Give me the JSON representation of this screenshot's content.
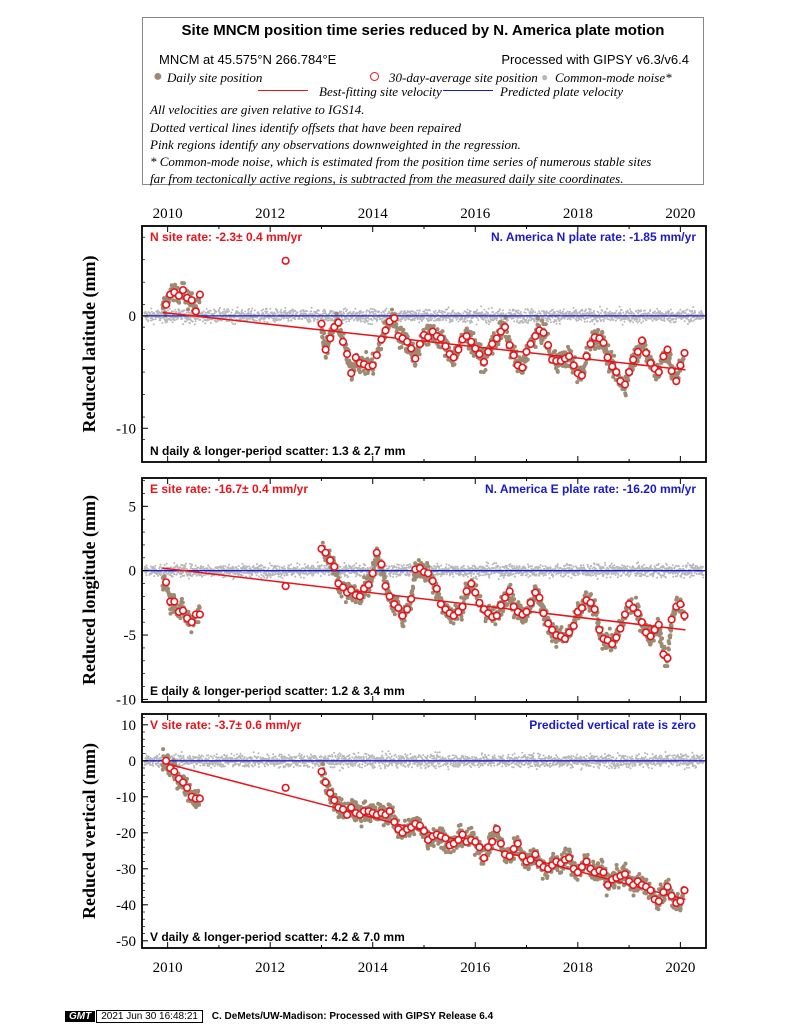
{
  "legend": {
    "title": "Site MNCM position time series reduced by N. America plate motion",
    "site_coords": "MNCM at 45.575°N 266.784°E",
    "processed": "Processed with GIPSY v6.3/v6.4",
    "daily_label": "Daily site position",
    "avg_label": "30-day-average site position",
    "cm_label": "Common-mode noise*",
    "fit_label": "Best-fitting site velocity",
    "pred_label": "Predicted plate velocity",
    "notes": [
      "All velocities are given relative to IGS14.",
      "Dotted vertical lines identify offsets that have been repaired",
      "Pink regions identify any observations downweighted in the regression.",
      "* Common-mode noise, which is estimated from the position time series of numerous stable sites",
      "far from tectonically active regions, is subtracted from the measured daily site coordinates."
    ]
  },
  "colors": {
    "daily": "#9c8a72",
    "avg_edge": "#e8141c",
    "common_mode": "#b8b8b8",
    "fit": "#e8141c",
    "plate": "#1a1acc",
    "site_rate_text": "#e8141c",
    "plate_rate_text": "#1a1acc"
  },
  "chart_data": [
    {
      "type": "scatter",
      "component": "N",
      "ylabel": "Reduced latitude (mm)",
      "ylim": [
        -13,
        8
      ],
      "yticks": [
        -10,
        0
      ],
      "xlim": [
        2009.5,
        2020.5
      ],
      "xticks": [
        2010,
        2012,
        2014,
        2016,
        2018,
        2020
      ],
      "site_rate": "N site rate:  -2.3± 0.4 mm/yr",
      "plate_rate": "N. America N plate rate: -1.85 mm/yr",
      "scatter": "N daily & longer-period scatter:   1.3 &   2.7 mm",
      "fit_line": {
        "x": [
          2009.9,
          2020.1
        ],
        "y": [
          0.3,
          -4.8
        ]
      },
      "plate_line": 0,
      "avg_30day": [
        [
          2009.97,
          1.0
        ],
        [
          2010.05,
          1.9
        ],
        [
          2010.13,
          2.1
        ],
        [
          2010.22,
          1.8
        ],
        [
          2010.3,
          2.3
        ],
        [
          2010.38,
          1.6
        ],
        [
          2010.47,
          1.4
        ],
        [
          2010.55,
          0.4
        ],
        [
          2010.63,
          1.9
        ],
        [
          2012.3,
          4.9
        ],
        [
          2013.0,
          -0.7
        ],
        [
          2013.08,
          -3.0
        ],
        [
          2013.17,
          -2.0
        ],
        [
          2013.25,
          -1.0
        ],
        [
          2013.33,
          -0.6
        ],
        [
          2013.42,
          -2.3
        ],
        [
          2013.5,
          -3.4
        ],
        [
          2013.58,
          -5.1
        ],
        [
          2013.67,
          -3.7
        ],
        [
          2013.75,
          -4.2
        ],
        [
          2013.83,
          -4.3
        ],
        [
          2013.92,
          -4.5
        ],
        [
          2014.0,
          -4.4
        ],
        [
          2014.08,
          -3.5
        ],
        [
          2014.17,
          -2.1
        ],
        [
          2014.25,
          -1.3
        ],
        [
          2014.33,
          -0.5
        ],
        [
          2014.42,
          -0.2
        ],
        [
          2014.5,
          -1.8
        ],
        [
          2014.58,
          -2.0
        ],
        [
          2014.67,
          -2.3
        ],
        [
          2014.75,
          -2.9
        ],
        [
          2014.83,
          -3.8
        ],
        [
          2014.92,
          -2.5
        ],
        [
          2015.0,
          -1.7
        ],
        [
          2015.08,
          -1.9
        ],
        [
          2015.17,
          -1.4
        ],
        [
          2015.25,
          -1.8
        ],
        [
          2015.33,
          -2.0
        ],
        [
          2015.42,
          -2.7
        ],
        [
          2015.5,
          -3.4
        ],
        [
          2015.58,
          -3.7
        ],
        [
          2015.67,
          -3.0
        ],
        [
          2015.75,
          -2.1
        ],
        [
          2015.83,
          -1.8
        ],
        [
          2015.92,
          -2.3
        ],
        [
          2016.0,
          -2.9
        ],
        [
          2016.08,
          -3.4
        ],
        [
          2016.17,
          -4.1
        ],
        [
          2016.25,
          -3.2
        ],
        [
          2016.33,
          -2.5
        ],
        [
          2016.42,
          -2.0
        ],
        [
          2016.5,
          -1.4
        ],
        [
          2016.58,
          -1.0
        ],
        [
          2016.67,
          -2.6
        ],
        [
          2016.75,
          -3.5
        ],
        [
          2016.83,
          -4.4
        ],
        [
          2016.92,
          -4.6
        ],
        [
          2017.0,
          -3.2
        ],
        [
          2017.08,
          -2.5
        ],
        [
          2017.17,
          -1.8
        ],
        [
          2017.25,
          -1.3
        ],
        [
          2017.33,
          -1.5
        ],
        [
          2017.42,
          -2.6
        ],
        [
          2017.5,
          -3.9
        ],
        [
          2017.58,
          -4.0
        ],
        [
          2017.67,
          -4.0
        ],
        [
          2017.75,
          -3.8
        ],
        [
          2017.83,
          -3.6
        ],
        [
          2017.92,
          -4.4
        ],
        [
          2018.0,
          -5.1
        ],
        [
          2018.08,
          -5.3
        ],
        [
          2018.17,
          -3.6
        ],
        [
          2018.25,
          -2.5
        ],
        [
          2018.33,
          -1.9
        ],
        [
          2018.42,
          -2.0
        ],
        [
          2018.5,
          -2.4
        ],
        [
          2018.58,
          -3.7
        ],
        [
          2018.67,
          -4.5
        ],
        [
          2018.75,
          -5.0
        ],
        [
          2018.83,
          -5.8
        ],
        [
          2018.92,
          -6.1
        ],
        [
          2019.0,
          -5.0
        ],
        [
          2019.08,
          -3.9
        ],
        [
          2019.17,
          -3.2
        ],
        [
          2019.25,
          -2.2
        ],
        [
          2019.33,
          -3.3
        ],
        [
          2019.42,
          -4.2
        ],
        [
          2019.5,
          -4.7
        ],
        [
          2019.58,
          -5.0
        ],
        [
          2019.67,
          -3.6
        ],
        [
          2019.75,
          -3.0
        ],
        [
          2019.83,
          -4.9
        ],
        [
          2019.92,
          -5.8
        ],
        [
          2020.0,
          -4.4
        ],
        [
          2020.08,
          -3.3
        ]
      ]
    },
    {
      "type": "scatter",
      "component": "E",
      "ylabel": "Reduced longitude (mm)",
      "ylim": [
        -10.2,
        7.2
      ],
      "yticks": [
        -10,
        -5,
        0,
        5
      ],
      "xlim": [
        2009.5,
        2020.5
      ],
      "xticks": [
        2010,
        2012,
        2014,
        2016,
        2018,
        2020
      ],
      "site_rate": "E site rate:  -16.7± 0.4 mm/yr",
      "plate_rate": "N. America E plate rate: -16.20 mm/yr",
      "scatter": "E daily & longer-period scatter:   1.2 &   3.4 mm",
      "fit_line": {
        "x": [
          2009.9,
          2020.1
        ],
        "y": [
          0.2,
          -4.6
        ]
      },
      "plate_line": 0,
      "avg_30day": [
        [
          2009.97,
          -0.9
        ],
        [
          2010.05,
          -2.4
        ],
        [
          2010.13,
          -2.4
        ],
        [
          2010.22,
          -3.2
        ],
        [
          2010.3,
          -3.1
        ],
        [
          2010.38,
          -3.7
        ],
        [
          2010.47,
          -4.0
        ],
        [
          2010.55,
          -3.4
        ],
        [
          2010.63,
          -3.4
        ],
        [
          2012.3,
          -1.2
        ],
        [
          2013.0,
          1.7
        ],
        [
          2013.08,
          1.4
        ],
        [
          2013.17,
          0.8
        ],
        [
          2013.25,
          0.3
        ],
        [
          2013.33,
          -1.0
        ],
        [
          2013.42,
          -1.3
        ],
        [
          2013.5,
          -1.7
        ],
        [
          2013.58,
          -1.5
        ],
        [
          2013.67,
          -1.9
        ],
        [
          2013.75,
          -2.0
        ],
        [
          2013.83,
          -1.4
        ],
        [
          2013.92,
          -1.1
        ],
        [
          2014.0,
          -0.2
        ],
        [
          2014.08,
          1.4
        ],
        [
          2014.17,
          0.5
        ],
        [
          2014.25,
          -1.2
        ],
        [
          2014.33,
          -2.0
        ],
        [
          2014.42,
          -2.6
        ],
        [
          2014.5,
          -2.9
        ],
        [
          2014.58,
          -3.5
        ],
        [
          2014.67,
          -3.0
        ],
        [
          2014.75,
          -2.2
        ],
        [
          2014.83,
          0.1
        ],
        [
          2014.92,
          0.2
        ],
        [
          2015.0,
          -0.1
        ],
        [
          2015.08,
          -0.2
        ],
        [
          2015.17,
          -0.8
        ],
        [
          2015.25,
          -1.4
        ],
        [
          2015.33,
          -2.6
        ],
        [
          2015.42,
          -3.0
        ],
        [
          2015.5,
          -3.3
        ],
        [
          2015.58,
          -3.5
        ],
        [
          2015.67,
          -3.2
        ],
        [
          2015.75,
          -2.8
        ],
        [
          2015.83,
          -1.6
        ],
        [
          2015.92,
          -1.0
        ],
        [
          2016.0,
          -1.7
        ],
        [
          2016.08,
          -2.5
        ],
        [
          2016.17,
          -3.0
        ],
        [
          2016.25,
          -3.3
        ],
        [
          2016.33,
          -3.6
        ],
        [
          2016.42,
          -3.5
        ],
        [
          2016.5,
          -2.7
        ],
        [
          2016.58,
          -2.1
        ],
        [
          2016.67,
          -1.6
        ],
        [
          2016.75,
          -2.8
        ],
        [
          2016.83,
          -3.2
        ],
        [
          2016.92,
          -3.4
        ],
        [
          2017.0,
          -3.2
        ],
        [
          2017.08,
          -2.5
        ],
        [
          2017.17,
          -1.7
        ],
        [
          2017.25,
          -2.1
        ],
        [
          2017.33,
          -3.3
        ],
        [
          2017.42,
          -4.1
        ],
        [
          2017.5,
          -4.6
        ],
        [
          2017.58,
          -5.0
        ],
        [
          2017.67,
          -5.1
        ],
        [
          2017.75,
          -5.3
        ],
        [
          2017.83,
          -4.8
        ],
        [
          2017.92,
          -4.3
        ],
        [
          2018.0,
          -3.2
        ],
        [
          2018.08,
          -2.9
        ],
        [
          2018.17,
          -2.3
        ],
        [
          2018.25,
          -2.5
        ],
        [
          2018.33,
          -3.0
        ],
        [
          2018.42,
          -4.6
        ],
        [
          2018.5,
          -5.3
        ],
        [
          2018.58,
          -5.4
        ],
        [
          2018.67,
          -5.7
        ],
        [
          2018.75,
          -5.2
        ],
        [
          2018.83,
          -4.5
        ],
        [
          2018.92,
          -3.4
        ],
        [
          2019.0,
          -2.6
        ],
        [
          2019.08,
          -2.9
        ],
        [
          2019.17,
          -3.3
        ],
        [
          2019.25,
          -4.0
        ],
        [
          2019.33,
          -4.8
        ],
        [
          2019.42,
          -5.1
        ],
        [
          2019.5,
          -4.6
        ],
        [
          2019.58,
          -4.2
        ],
        [
          2019.67,
          -6.5
        ],
        [
          2019.75,
          -6.8
        ],
        [
          2019.83,
          -3.8
        ],
        [
          2019.92,
          -2.8
        ],
        [
          2020.0,
          -2.6
        ],
        [
          2020.08,
          -3.5
        ]
      ]
    },
    {
      "type": "scatter",
      "component": "V",
      "ylabel": "Reduced vertical (mm)",
      "ylim": [
        -52,
        13
      ],
      "yticks": [
        -50,
        -40,
        -30,
        -20,
        -10,
        0,
        10
      ],
      "xlim": [
        2009.5,
        2020.5
      ],
      "xticks": [
        2010,
        2012,
        2014,
        2016,
        2018,
        2020
      ],
      "site_rate": "V site rate:  -3.7± 0.6 mm/yr",
      "plate_rate": "Predicted vertical rate is zero",
      "scatter": "V daily & longer-period scatter:   4.2 &   7.0 mm",
      "fit_line": {
        "x": [
          2009.9,
          2020.1
        ],
        "y": [
          -0.5,
          -38.5
        ]
      },
      "plate_line": 0,
      "avg_30day": [
        [
          2009.97,
          0.0
        ],
        [
          2010.05,
          -2.0
        ],
        [
          2010.13,
          -3.0
        ],
        [
          2010.22,
          -5.0
        ],
        [
          2010.3,
          -6.0
        ],
        [
          2010.38,
          -7.5
        ],
        [
          2010.47,
          -10.0
        ],
        [
          2010.55,
          -10.5
        ],
        [
          2010.63,
          -10.5
        ],
        [
          2012.3,
          -7.5
        ],
        [
          2013.0,
          -3.0
        ],
        [
          2013.08,
          -6.0
        ],
        [
          2013.17,
          -9.0
        ],
        [
          2013.25,
          -11.0
        ],
        [
          2013.33,
          -13.0
        ],
        [
          2013.42,
          -13.5
        ],
        [
          2013.5,
          -15.0
        ],
        [
          2013.58,
          -13.0
        ],
        [
          2013.67,
          -14.5
        ],
        [
          2013.75,
          -15.0
        ],
        [
          2013.83,
          -14.0
        ],
        [
          2013.92,
          -14.0
        ],
        [
          2014.0,
          -14.5
        ],
        [
          2014.08,
          -15.0
        ],
        [
          2014.17,
          -14.5
        ],
        [
          2014.25,
          -15.0
        ],
        [
          2014.33,
          -14.0
        ],
        [
          2014.42,
          -17.0
        ],
        [
          2014.5,
          -19.0
        ],
        [
          2014.58,
          -20.0
        ],
        [
          2014.67,
          -19.0
        ],
        [
          2014.75,
          -18.5
        ],
        [
          2014.83,
          -17.5
        ],
        [
          2014.92,
          -18.0
        ],
        [
          2015.0,
          -19.5
        ],
        [
          2015.08,
          -22.0
        ],
        [
          2015.17,
          -21.0
        ],
        [
          2015.25,
          -20.5
        ],
        [
          2015.33,
          -21.0
        ],
        [
          2015.42,
          -21.5
        ],
        [
          2015.5,
          -23.5
        ],
        [
          2015.58,
          -23.0
        ],
        [
          2015.67,
          -22.0
        ],
        [
          2015.75,
          -20.5
        ],
        [
          2015.83,
          -22.5
        ],
        [
          2015.92,
          -22.0
        ],
        [
          2016.0,
          -22.5
        ],
        [
          2016.08,
          -24.0
        ],
        [
          2016.17,
          -27.0
        ],
        [
          2016.25,
          -24.0
        ],
        [
          2016.33,
          -22.5
        ],
        [
          2016.42,
          -19.0
        ],
        [
          2016.5,
          -23.0
        ],
        [
          2016.58,
          -26.0
        ],
        [
          2016.67,
          -26.5
        ],
        [
          2016.75,
          -24.5
        ],
        [
          2016.83,
          -23.0
        ],
        [
          2016.92,
          -26.5
        ],
        [
          2017.0,
          -28.0
        ],
        [
          2017.08,
          -27.5
        ],
        [
          2017.17,
          -26.0
        ],
        [
          2017.25,
          -28.5
        ],
        [
          2017.33,
          -29.5
        ],
        [
          2017.42,
          -30.0
        ],
        [
          2017.5,
          -29.0
        ],
        [
          2017.58,
          -28.0
        ],
        [
          2017.67,
          -28.5
        ],
        [
          2017.75,
          -27.5
        ],
        [
          2017.83,
          -27.0
        ],
        [
          2017.92,
          -30.0
        ],
        [
          2018.0,
          -31.0
        ],
        [
          2018.08,
          -29.5
        ],
        [
          2018.17,
          -28.0
        ],
        [
          2018.25,
          -30.0
        ],
        [
          2018.33,
          -31.0
        ],
        [
          2018.42,
          -30.5
        ],
        [
          2018.5,
          -31.0
        ],
        [
          2018.58,
          -34.5
        ],
        [
          2018.67,
          -33.0
        ],
        [
          2018.75,
          -32.5
        ],
        [
          2018.83,
          -32.0
        ],
        [
          2018.92,
          -31.5
        ],
        [
          2019.0,
          -33.5
        ],
        [
          2019.08,
          -34.5
        ],
        [
          2019.17,
          -33.5
        ],
        [
          2019.25,
          -34.5
        ],
        [
          2019.33,
          -35.0
        ],
        [
          2019.42,
          -36.0
        ],
        [
          2019.5,
          -38.5
        ],
        [
          2019.58,
          -39.0
        ],
        [
          2019.67,
          -36.5
        ],
        [
          2019.75,
          -35.0
        ],
        [
          2019.83,
          -37.5
        ],
        [
          2019.92,
          -39.5
        ],
        [
          2020.0,
          -39.0
        ],
        [
          2020.08,
          -36.0
        ]
      ]
    }
  ],
  "footer": {
    "logo": "GMT",
    "date": "2021 Jun 30 16:48:21",
    "credit": "C. DeMets/UW-Madison: Processed with GIPSY Release 6.4"
  }
}
